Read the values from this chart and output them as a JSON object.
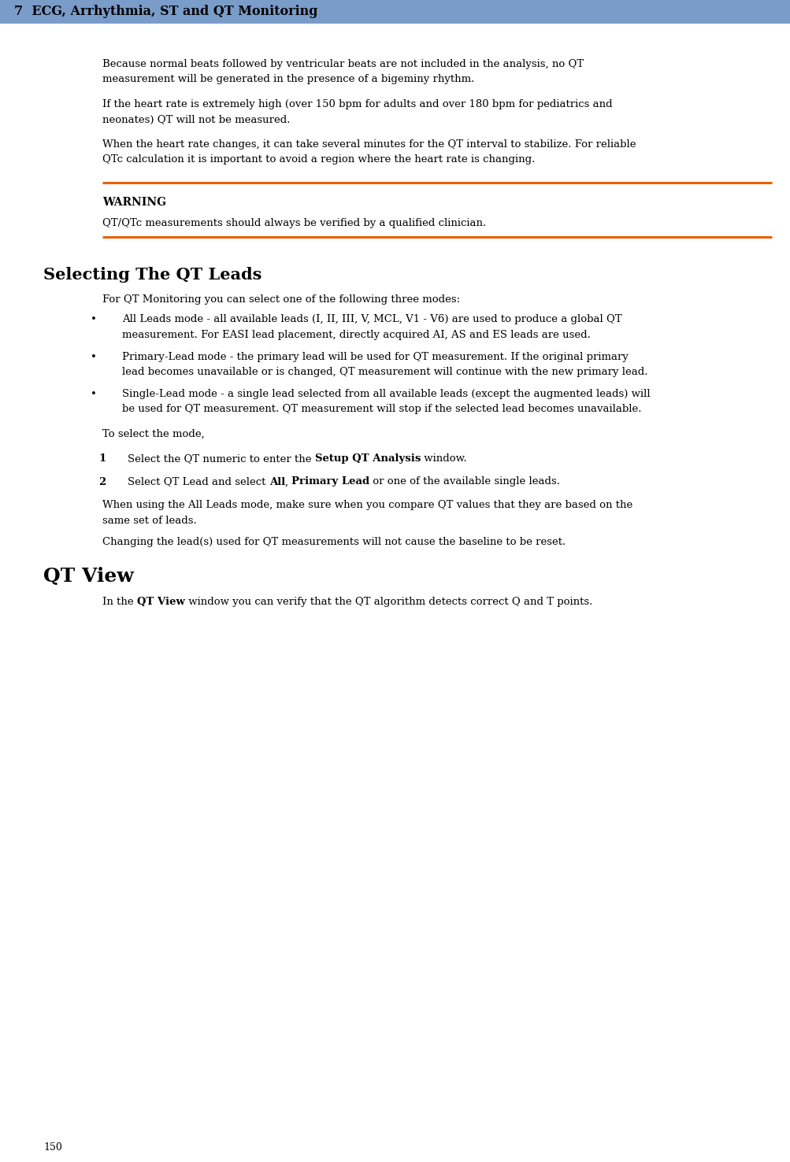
{
  "header_text": "7  ECG, Arrhythmia, ST and QT Monitoring",
  "header_bg_color": "#7a9cc9",
  "header_text_color": "#000000",
  "page_number": "150",
  "bg_color": "#ffffff",
  "body_text_color": "#000000",
  "orange_line_color": "#e8610a",
  "para1_lines": [
    "Because normal beats followed by ventricular beats are not included in the analysis, no QT",
    "measurement will be generated in the presence of a bigeminy rhythm."
  ],
  "para2_lines": [
    "If the heart rate is extremely high (over 150 bpm for adults and over 180 bpm for pediatrics and",
    "neonates) QT will not be measured."
  ],
  "para3_lines": [
    "When the heart rate changes, it can take several minutes for the QT interval to stabilize. For reliable",
    "QTc calculation it is important to avoid a region where the heart rate is changing."
  ],
  "warning_label": "WARNING",
  "warning_text": "QT/QTc measurements should always be verified by a qualified clinician.",
  "section_title": "Selecting The QT Leads",
  "section_intro": "For QT Monitoring you can select one of the following three modes:",
  "bullet1_lines": [
    "All Leads mode - all available leads (I, II, III, V, MCL, V1 - V6) are used to produce a global QT",
    "measurement. For EASI lead placement, directly acquired AI, AS and ES leads are used."
  ],
  "bullet2_lines": [
    "Primary-Lead mode - the primary lead will be used for QT measurement. If the original primary",
    "lead becomes unavailable or is changed, QT measurement will continue with the new primary lead."
  ],
  "bullet3_lines": [
    "Single-Lead mode - a single lead selected from all available leads (except the augmented leads) will",
    "be used for QT measurement. QT measurement will stop if the selected lead becomes unavailable."
  ],
  "to_select": "To select the mode,",
  "step1_num": "1",
  "step1_parts": [
    {
      "text": "Select the QT numeric to enter the ",
      "bold": false
    },
    {
      "text": "Setup QT Analysis",
      "bold": true
    },
    {
      "text": " window.",
      "bold": false
    }
  ],
  "step2_num": "2",
  "step2_parts": [
    {
      "text": "Select QT Lead and select ",
      "bold": false
    },
    {
      "text": "All",
      "bold": true
    },
    {
      "text": ", ",
      "bold": false
    },
    {
      "text": "Primary Lead",
      "bold": true
    },
    {
      "text": " or one of the available single leads.",
      "bold": false
    }
  ],
  "note1_lines": [
    "When using the All Leads mode, make sure when you compare QT values that they are based on the",
    "same set of leads."
  ],
  "note2": "Changing the lead(s) used for QT measurements will not cause the baseline to be reset.",
  "qt_view_title": "QT View",
  "qt_view_parts": [
    {
      "text": "In the ",
      "bold": false
    },
    {
      "text": "QT View",
      "bold": true
    },
    {
      "text": " window you can verify that the QT algorithm detects correct Q and T points.",
      "bold": false
    }
  ],
  "font_family": "DejaVu Serif",
  "header_fontsize": 11.5,
  "body_fontsize": 9.5,
  "section_title_fontsize": 15,
  "qt_view_title_fontsize": 18,
  "warning_label_fontsize": 10,
  "step_num_fontsize": 9.5
}
